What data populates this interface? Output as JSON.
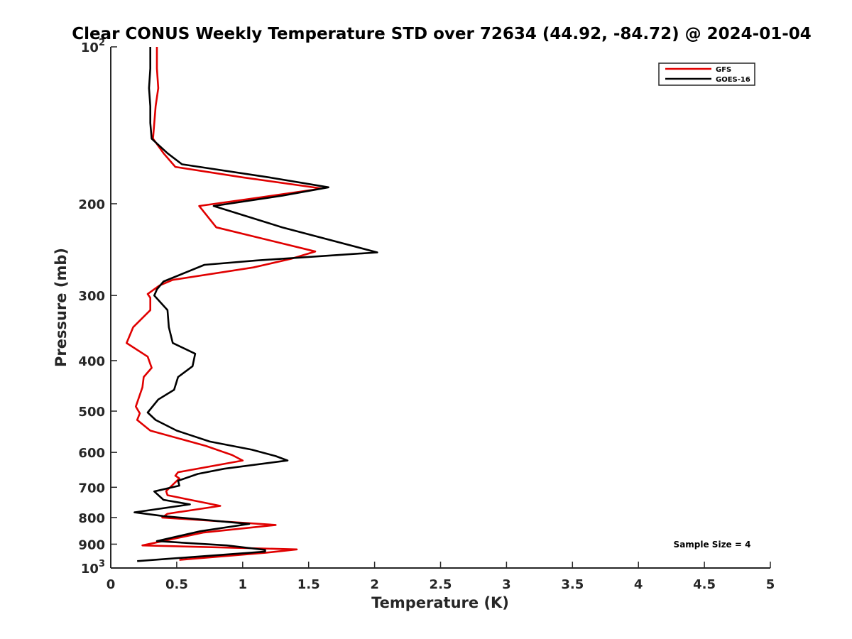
{
  "chart_data": {
    "type": "line",
    "title": "Clear CONUS Weekly Temperature STD over 72634 (44.92, -84.72) @ 2024-01-04",
    "xlabel": "Temperature (K)",
    "ylabel": "Pressure (mb)",
    "xlim": [
      0,
      5
    ],
    "ylim": [
      100,
      1000
    ],
    "yscale": "log",
    "yreversed": true,
    "x_ticks": [
      0,
      0.5,
      1,
      1.5,
      2,
      2.5,
      3,
      3.5,
      4,
      4.5,
      5
    ],
    "x_tick_labels": [
      "0",
      "0.5",
      "1",
      "1.5",
      "2",
      "2.5",
      "3",
      "3.5",
      "4",
      "4.5",
      "5"
    ],
    "y_ticks": [
      100,
      200,
      300,
      400,
      500,
      600,
      700,
      800,
      900,
      1000
    ],
    "y_tick_labels": [
      {
        "base": "10",
        "exp": "2"
      },
      {
        "base": "200",
        "exp": ""
      },
      {
        "base": "300",
        "exp": ""
      },
      {
        "base": "400",
        "exp": ""
      },
      {
        "base": "500",
        "exp": ""
      },
      {
        "base": "600",
        "exp": ""
      },
      {
        "base": "700",
        "exp": ""
      },
      {
        "base": "800",
        "exp": ""
      },
      {
        "base": "900",
        "exp": ""
      },
      {
        "base": "10",
        "exp": "3"
      }
    ],
    "grid": false,
    "legend_position": "top-right",
    "annotation": "Sample Size = 4",
    "series": [
      {
        "name": "GFS",
        "color": "#e00000",
        "points": [
          {
            "x": 0.35,
            "y": 100
          },
          {
            "x": 0.35,
            "y": 110
          },
          {
            "x": 0.36,
            "y": 120
          },
          {
            "x": 0.34,
            "y": 130
          },
          {
            "x": 0.33,
            "y": 140
          },
          {
            "x": 0.32,
            "y": 150
          },
          {
            "x": 0.4,
            "y": 160
          },
          {
            "x": 0.49,
            "y": 170
          },
          {
            "x": 1.0,
            "y": 178
          },
          {
            "x": 1.6,
            "y": 187
          },
          {
            "x": 1.1,
            "y": 195
          },
          {
            "x": 0.67,
            "y": 202
          },
          {
            "x": 0.8,
            "y": 222
          },
          {
            "x": 1.55,
            "y": 247
          },
          {
            "x": 1.37,
            "y": 255
          },
          {
            "x": 1.08,
            "y": 265
          },
          {
            "x": 0.47,
            "y": 280
          },
          {
            "x": 0.37,
            "y": 287
          },
          {
            "x": 0.28,
            "y": 298
          },
          {
            "x": 0.3,
            "y": 303
          },
          {
            "x": 0.3,
            "y": 320
          },
          {
            "x": 0.17,
            "y": 345
          },
          {
            "x": 0.12,
            "y": 370
          },
          {
            "x": 0.28,
            "y": 393
          },
          {
            "x": 0.31,
            "y": 413
          },
          {
            "x": 0.25,
            "y": 430
          },
          {
            "x": 0.24,
            "y": 450
          },
          {
            "x": 0.19,
            "y": 490
          },
          {
            "x": 0.22,
            "y": 505
          },
          {
            "x": 0.2,
            "y": 520
          },
          {
            "x": 0.3,
            "y": 545
          },
          {
            "x": 0.72,
            "y": 583
          },
          {
            "x": 0.92,
            "y": 607
          },
          {
            "x": 1.0,
            "y": 622
          },
          {
            "x": 0.51,
            "y": 655
          },
          {
            "x": 0.49,
            "y": 665
          },
          {
            "x": 0.52,
            "y": 673
          },
          {
            "x": 0.42,
            "y": 712
          },
          {
            "x": 0.43,
            "y": 725
          },
          {
            "x": 0.83,
            "y": 760
          },
          {
            "x": 0.43,
            "y": 787
          },
          {
            "x": 0.39,
            "y": 800
          },
          {
            "x": 1.25,
            "y": 827
          },
          {
            "x": 0.7,
            "y": 855
          },
          {
            "x": 0.24,
            "y": 905
          },
          {
            "x": 1.41,
            "y": 921
          },
          {
            "x": 1.17,
            "y": 935
          },
          {
            "x": 0.52,
            "y": 965
          }
        ]
      },
      {
        "name": "GOES-16",
        "color": "#000000",
        "points": [
          {
            "x": 0.3,
            "y": 100
          },
          {
            "x": 0.3,
            "y": 110
          },
          {
            "x": 0.29,
            "y": 120
          },
          {
            "x": 0.3,
            "y": 130
          },
          {
            "x": 0.3,
            "y": 140
          },
          {
            "x": 0.31,
            "y": 150
          },
          {
            "x": 0.43,
            "y": 160
          },
          {
            "x": 0.54,
            "y": 168
          },
          {
            "x": 1.2,
            "y": 178
          },
          {
            "x": 1.65,
            "y": 186
          },
          {
            "x": 1.3,
            "y": 193
          },
          {
            "x": 0.78,
            "y": 202
          },
          {
            "x": 1.3,
            "y": 222
          },
          {
            "x": 2.02,
            "y": 248
          },
          {
            "x": 1.1,
            "y": 257
          },
          {
            "x": 0.71,
            "y": 262
          },
          {
            "x": 0.4,
            "y": 282
          },
          {
            "x": 0.35,
            "y": 292
          },
          {
            "x": 0.33,
            "y": 300
          },
          {
            "x": 0.43,
            "y": 320
          },
          {
            "x": 0.44,
            "y": 345
          },
          {
            "x": 0.47,
            "y": 370
          },
          {
            "x": 0.64,
            "y": 388
          },
          {
            "x": 0.62,
            "y": 410
          },
          {
            "x": 0.51,
            "y": 430
          },
          {
            "x": 0.48,
            "y": 455
          },
          {
            "x": 0.36,
            "y": 475
          },
          {
            "x": 0.28,
            "y": 503
          },
          {
            "x": 0.34,
            "y": 520
          },
          {
            "x": 0.5,
            "y": 545
          },
          {
            "x": 0.75,
            "y": 572
          },
          {
            "x": 1.07,
            "y": 593
          },
          {
            "x": 1.25,
            "y": 610
          },
          {
            "x": 1.34,
            "y": 622
          },
          {
            "x": 0.86,
            "y": 645
          },
          {
            "x": 0.66,
            "y": 660
          },
          {
            "x": 0.51,
            "y": 680
          },
          {
            "x": 0.52,
            "y": 695
          },
          {
            "x": 0.33,
            "y": 713
          },
          {
            "x": 0.4,
            "y": 740
          },
          {
            "x": 0.6,
            "y": 755
          },
          {
            "x": 0.18,
            "y": 782
          },
          {
            "x": 0.4,
            "y": 795
          },
          {
            "x": 1.05,
            "y": 823
          },
          {
            "x": 0.68,
            "y": 850
          },
          {
            "x": 0.35,
            "y": 888
          },
          {
            "x": 0.88,
            "y": 905
          },
          {
            "x": 1.17,
            "y": 923
          },
          {
            "x": 1.17,
            "y": 930
          },
          {
            "x": 0.2,
            "y": 970
          }
        ]
      }
    ]
  }
}
